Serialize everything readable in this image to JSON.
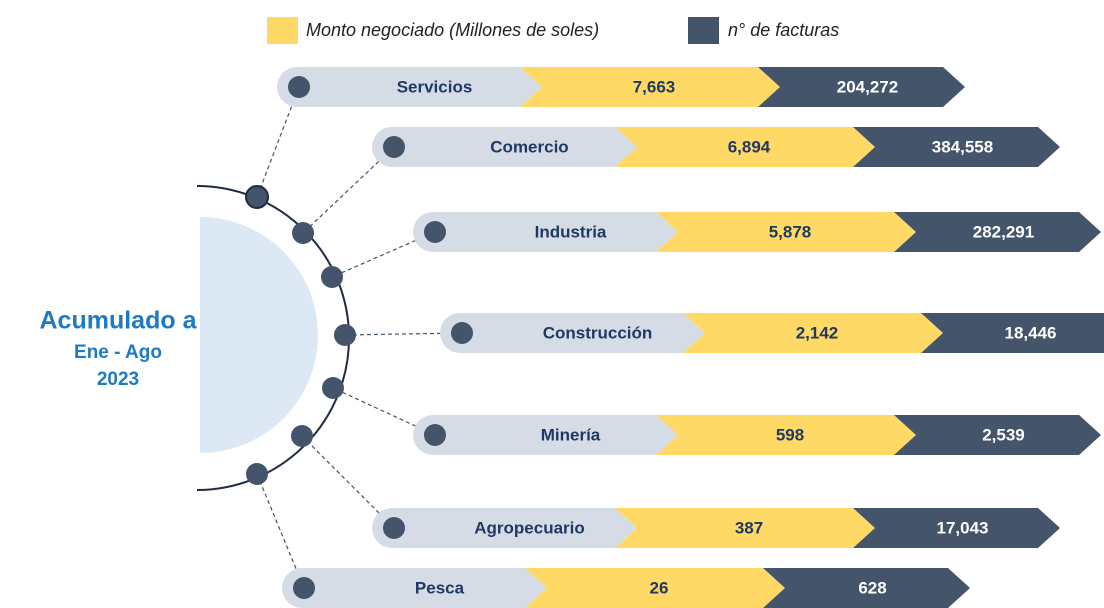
{
  "legend": {
    "amount": "Monto negociado (Millones de soles)",
    "invoices": "n° de facturas"
  },
  "side": {
    "title": "Acumulado a",
    "period": "Ene - Ago",
    "year": "2023"
  },
  "rows": [
    {
      "label": "Servicios",
      "amount": "7,663",
      "invoices": "204,272"
    },
    {
      "label": "Comercio",
      "amount": "6,894",
      "invoices": "384,558"
    },
    {
      "label": "Industria",
      "amount": "5,878",
      "invoices": "282,291"
    },
    {
      "label": "Construcción",
      "amount": "2,142",
      "invoices": "18,446"
    },
    {
      "label": "Minería",
      "amount": "598",
      "invoices": "2,539"
    },
    {
      "label": "Agropecuario",
      "amount": "387",
      "invoices": "17,043"
    },
    {
      "label": "Pesca",
      "amount": "26",
      "invoices": "628"
    }
  ]
}
